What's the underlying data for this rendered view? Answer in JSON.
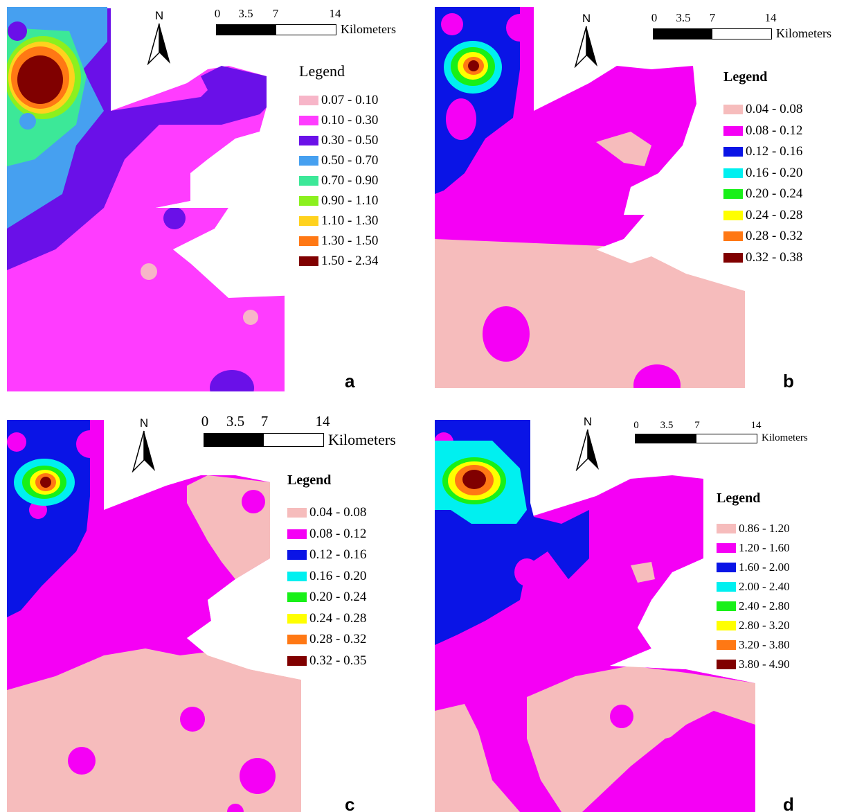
{
  "colors": {
    "pale_pink": "#f7b5c8",
    "pink_salmon": "#f6bcbc",
    "magenta": "#f500f5",
    "pink_magenta": "#ff3cff",
    "violet_blue": "#6a10e8",
    "sky_blue": "#46a0f0",
    "blue": "#0a14e6",
    "cyan": "#00f0f0",
    "teal_green": "#3ce898",
    "green": "#18f018",
    "yellow_green": "#8cf01e",
    "yellow": "#ffff00",
    "gold": "#ffd21e",
    "orange": "#ff7814",
    "dark_red": "#800000"
  },
  "north_label": "N",
  "scale": {
    "ticks": [
      "0",
      "3.5",
      "7",
      "14"
    ],
    "unit": "Kilometers"
  },
  "panels": {
    "a": {
      "letter": "a",
      "legend_title": "Legend",
      "legend": [
        {
          "label": "0.07 - 0.10",
          "color": "#f7b5c8"
        },
        {
          "label": "0.10 - 0.30",
          "color": "#ff3cff"
        },
        {
          "label": "0.30 - 0.50",
          "color": "#6a10e8"
        },
        {
          "label": "0.50 - 0.70",
          "color": "#46a0f0"
        },
        {
          "label": "0.70 - 0.90",
          "color": "#3ce898"
        },
        {
          "label": "0.90 - 1.10",
          "color": "#8cf01e"
        },
        {
          "label": "1.10 - 1.30",
          "color": "#ffd21e"
        },
        {
          "label": "1.30 - 1.50",
          "color": "#ff7814"
        },
        {
          "label": "1.50 - 2.34",
          "color": "#800000"
        }
      ]
    },
    "b": {
      "letter": "b",
      "legend_title": "Legend",
      "legend": [
        {
          "label": "0.04 - 0.08",
          "color": "#f6bcbc"
        },
        {
          "label": "0.08 - 0.12",
          "color": "#f500f5"
        },
        {
          "label": "0.12 - 0.16",
          "color": "#0a14e6"
        },
        {
          "label": "0.16 - 0.20",
          "color": "#00f0f0"
        },
        {
          "label": "0.20 - 0.24",
          "color": "#18f018"
        },
        {
          "label": "0.24 - 0.28",
          "color": "#ffff00"
        },
        {
          "label": "0.28 - 0.32",
          "color": "#ff7814"
        },
        {
          "label": "0.32 - 0.38",
          "color": "#800000"
        }
      ]
    },
    "c": {
      "letter": "c",
      "legend_title": "Legend",
      "legend": [
        {
          "label": "0.04 - 0.08",
          "color": "#f6bcbc"
        },
        {
          "label": "0.08 - 0.12",
          "color": "#f500f5"
        },
        {
          "label": "0.12 - 0.16",
          "color": "#0a14e6"
        },
        {
          "label": "0.16 - 0.20",
          "color": "#00f0f0"
        },
        {
          "label": "0.20 - 0.24",
          "color": "#18f018"
        },
        {
          "label": "0.24 - 0.28",
          "color": "#ffff00"
        },
        {
          "label": "0.28 - 0.32",
          "color": "#ff7814"
        },
        {
          "label": "0.32 - 0.35",
          "color": "#800000"
        }
      ]
    },
    "d": {
      "letter": "d",
      "legend_title": "Legend",
      "legend": [
        {
          "label": "0.86 - 1.20",
          "color": "#f6bcbc"
        },
        {
          "label": "1.20 - 1.60",
          "color": "#f500f5"
        },
        {
          "label": "1.60 - 2.00",
          "color": "#0a14e6"
        },
        {
          "label": "2.00 - 2.40",
          "color": "#00f0f0"
        },
        {
          "label": "2.40 - 2.80",
          "color": "#18f018"
        },
        {
          "label": "2.80 - 3.20",
          "color": "#ffff00"
        },
        {
          "label": "3.20 - 3.80",
          "color": "#ff7814"
        },
        {
          "label": "3.80 - 4.90",
          "color": "#800000"
        }
      ]
    }
  }
}
